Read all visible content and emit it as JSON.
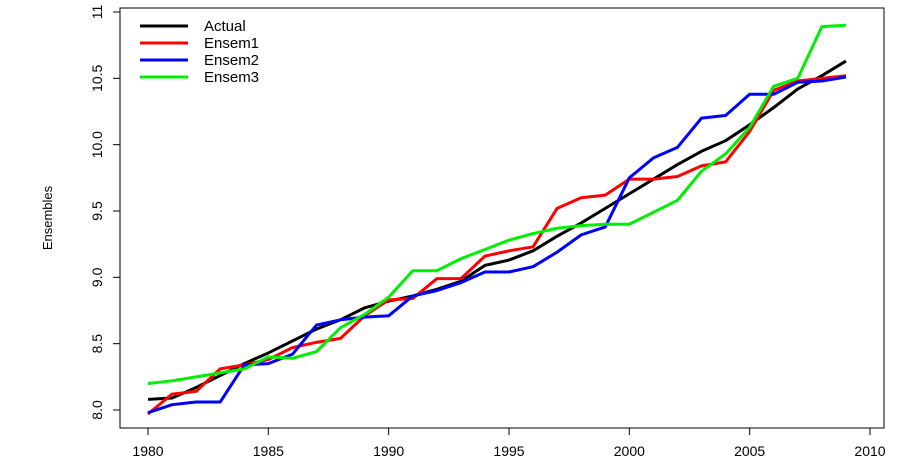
{
  "chart_data": {
    "type": "line",
    "title": "",
    "xlabel": "",
    "ylabel": "Ensembles",
    "xlim": [
      1980,
      2010
    ],
    "ylim": [
      8.0,
      11.0
    ],
    "x_ticks": [
      1980,
      1985,
      1990,
      1995,
      2000,
      2005,
      2010
    ],
    "y_ticks": [
      8.0,
      8.5,
      9.0,
      9.5,
      10.0,
      10.5,
      11.0
    ],
    "x_tick_labels": [
      "1980",
      "1985",
      "1990",
      "1995",
      "2000",
      "2005",
      "2010"
    ],
    "y_tick_labels": [
      "8.0",
      "8.5",
      "9.0",
      "9.5",
      "10.0",
      "10.5",
      "11"
    ],
    "grid": false,
    "legend_position": "top-left",
    "x": [
      1980,
      1981,
      1982,
      1983,
      1984,
      1985,
      1986,
      1987,
      1988,
      1989,
      1990,
      1991,
      1992,
      1993,
      1994,
      1995,
      1996,
      1997,
      1998,
      1999,
      2000,
      2001,
      2002,
      2003,
      2004,
      2005,
      2006,
      2007,
      2008,
      2009
    ],
    "series": [
      {
        "name": "Actual",
        "color": "#000000",
        "values": [
          8.08,
          8.09,
          8.17,
          8.26,
          8.35,
          8.43,
          8.52,
          8.61,
          8.68,
          8.77,
          8.82,
          8.86,
          8.91,
          8.97,
          9.09,
          9.13,
          9.2,
          9.31,
          9.41,
          9.52,
          9.63,
          9.74,
          9.85,
          9.95,
          10.03,
          10.15,
          10.28,
          10.42,
          10.52,
          10.63
        ]
      },
      {
        "name": "Ensem1",
        "color": "#ff0000",
        "values": [
          7.97,
          8.12,
          8.14,
          8.31,
          8.34,
          8.38,
          8.47,
          8.51,
          8.54,
          8.71,
          8.83,
          8.84,
          8.99,
          8.99,
          9.16,
          9.2,
          9.23,
          9.52,
          9.6,
          9.62,
          9.74,
          9.74,
          9.76,
          9.84,
          9.87,
          10.1,
          10.41,
          10.48,
          10.5,
          10.52
        ]
      },
      {
        "name": "Ensem2",
        "color": "#0000ff",
        "values": [
          7.98,
          8.04,
          8.06,
          8.06,
          8.34,
          8.35,
          8.42,
          8.64,
          8.68,
          8.7,
          8.71,
          8.86,
          8.9,
          8.96,
          9.04,
          9.04,
          9.08,
          9.19,
          9.32,
          9.38,
          9.75,
          9.9,
          9.98,
          10.2,
          10.22,
          10.38,
          10.38,
          10.47,
          10.48,
          10.51
        ]
      },
      {
        "name": "Ensem3",
        "color": "#00ee00",
        "values": [
          8.2,
          8.22,
          8.25,
          8.28,
          8.31,
          8.4,
          8.39,
          8.44,
          8.62,
          8.72,
          8.85,
          9.05,
          9.05,
          9.14,
          9.21,
          9.28,
          9.33,
          9.37,
          9.39,
          9.4,
          9.4,
          9.49,
          9.58,
          9.8,
          9.93,
          10.13,
          10.44,
          10.5,
          10.89,
          10.9
        ]
      }
    ]
  }
}
